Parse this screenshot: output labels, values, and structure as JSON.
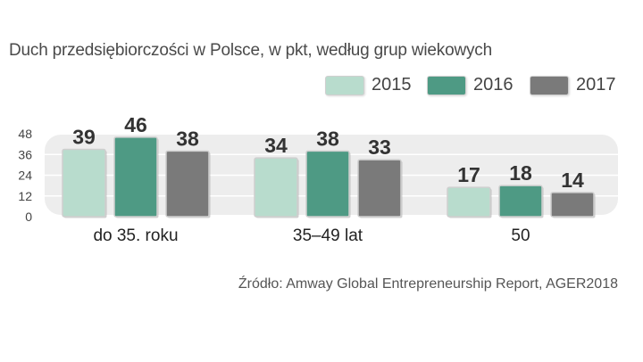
{
  "colors": {
    "s2015": "#b8dccd",
    "s2016": "#4e9a84",
    "s2017": "#7a7a7a",
    "panel": "#ededed",
    "text": "#333333"
  },
  "chart_data": {
    "type": "bar",
    "title": "Duch przedsiębiorczości w Polsce, w pkt, według grup wiekowych",
    "categories": [
      "do 35. roku",
      "35–49 lat",
      "50"
    ],
    "series": [
      {
        "name": "2015",
        "values": [
          39,
          34,
          17
        ]
      },
      {
        "name": "2016",
        "values": [
          46,
          38,
          18
        ]
      },
      {
        "name": "2017",
        "values": [
          38,
          33,
          14
        ]
      }
    ],
    "yticks": [
      "48",
      "36",
      "24",
      "12",
      "0"
    ],
    "ylim": [
      0,
      48
    ],
    "xlabel": "",
    "ylabel": "",
    "legend_position": "top-right",
    "source": "Źródło: Amway Global Entrepreneurship Report, AGER2018"
  }
}
